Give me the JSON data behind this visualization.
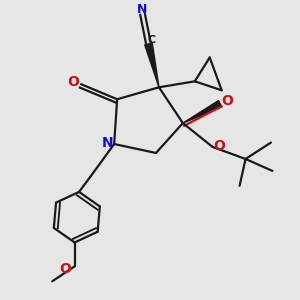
{
  "bg_color": "#e6e6e6",
  "bond_color": "#1a1a1a",
  "N_color": "#1010cc",
  "O_color": "#cc1010",
  "C_color": "#1a1a1a",
  "figsize": [
    3.0,
    3.0
  ],
  "dpi": 100,
  "xlim": [
    0,
    10
  ],
  "ylim": [
    0,
    10
  ],
  "lw": 1.6
}
